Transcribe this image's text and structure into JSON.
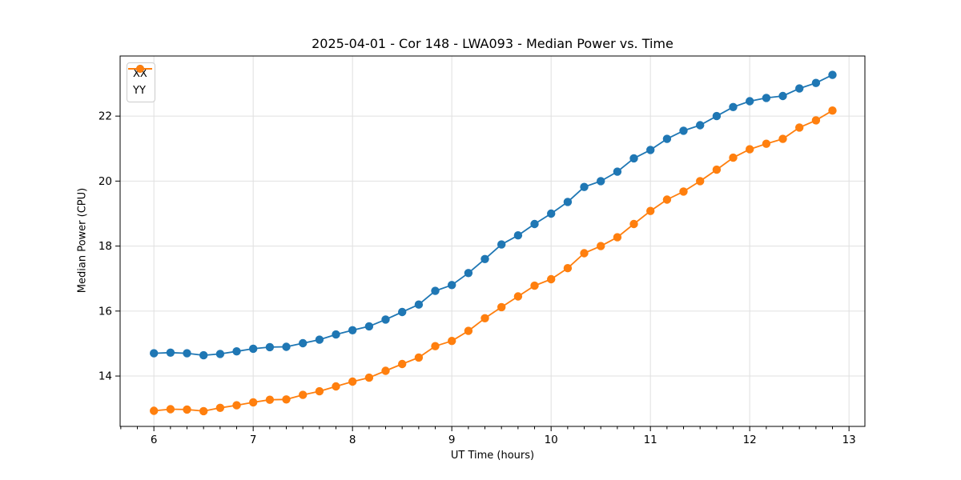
{
  "chart_data": {
    "type": "line",
    "title": "2025-04-01 - Cor 148 - LWA093 - Median Power vs. Time",
    "xlabel": "UT Time (hours)",
    "ylabel": "Median Power (CPU)",
    "xlim": [
      5.66,
      13.16
    ],
    "ylim": [
      12.45,
      23.85
    ],
    "x_ticks": [
      6,
      7,
      8,
      9,
      10,
      11,
      12,
      13
    ],
    "y_ticks": [
      14,
      16,
      18,
      20,
      22
    ],
    "x_minor_step": 0.16667,
    "grid": true,
    "grid_color": "#e0e0e0",
    "frame_color": "#000000",
    "legend_position": "upper-left",
    "x": [
      6.0,
      6.167,
      6.333,
      6.5,
      6.667,
      6.833,
      7.0,
      7.167,
      7.333,
      7.5,
      7.667,
      7.833,
      8.0,
      8.167,
      8.333,
      8.5,
      8.667,
      8.833,
      9.0,
      9.167,
      9.333,
      9.5,
      9.667,
      9.833,
      10.0,
      10.167,
      10.333,
      10.5,
      10.667,
      10.833,
      11.0,
      11.167,
      11.333,
      11.5,
      11.667,
      11.833,
      12.0,
      12.167,
      12.333,
      12.5,
      12.667,
      12.833
    ],
    "series": [
      {
        "name": "XX",
        "color": "#1f77b4",
        "values": [
          14.7,
          14.72,
          14.7,
          14.64,
          14.68,
          14.76,
          14.84,
          14.89,
          14.9,
          15.01,
          15.12,
          15.28,
          15.41,
          15.53,
          15.74,
          15.97,
          16.2,
          16.62,
          16.8,
          17.17,
          17.6,
          18.05,
          18.33,
          18.68,
          19.0,
          19.36,
          19.82,
          20.0,
          20.29,
          20.7,
          20.96,
          21.3,
          21.55,
          21.72,
          22.0,
          22.28,
          22.46,
          22.56,
          22.62,
          22.85,
          23.02,
          23.27
        ]
      },
      {
        "name": "YY",
        "color": "#ff7f0e",
        "values": [
          12.93,
          12.98,
          12.97,
          12.92,
          13.02,
          13.1,
          13.19,
          13.27,
          13.28,
          13.42,
          13.53,
          13.68,
          13.83,
          13.95,
          14.16,
          14.37,
          14.57,
          14.92,
          15.08,
          15.39,
          15.78,
          16.12,
          16.45,
          16.78,
          16.98,
          17.32,
          17.78,
          18.0,
          18.27,
          18.68,
          19.08,
          19.43,
          19.68,
          20.0,
          20.35,
          20.72,
          20.98,
          21.15,
          21.3,
          21.65,
          21.87,
          22.17
        ]
      }
    ]
  }
}
